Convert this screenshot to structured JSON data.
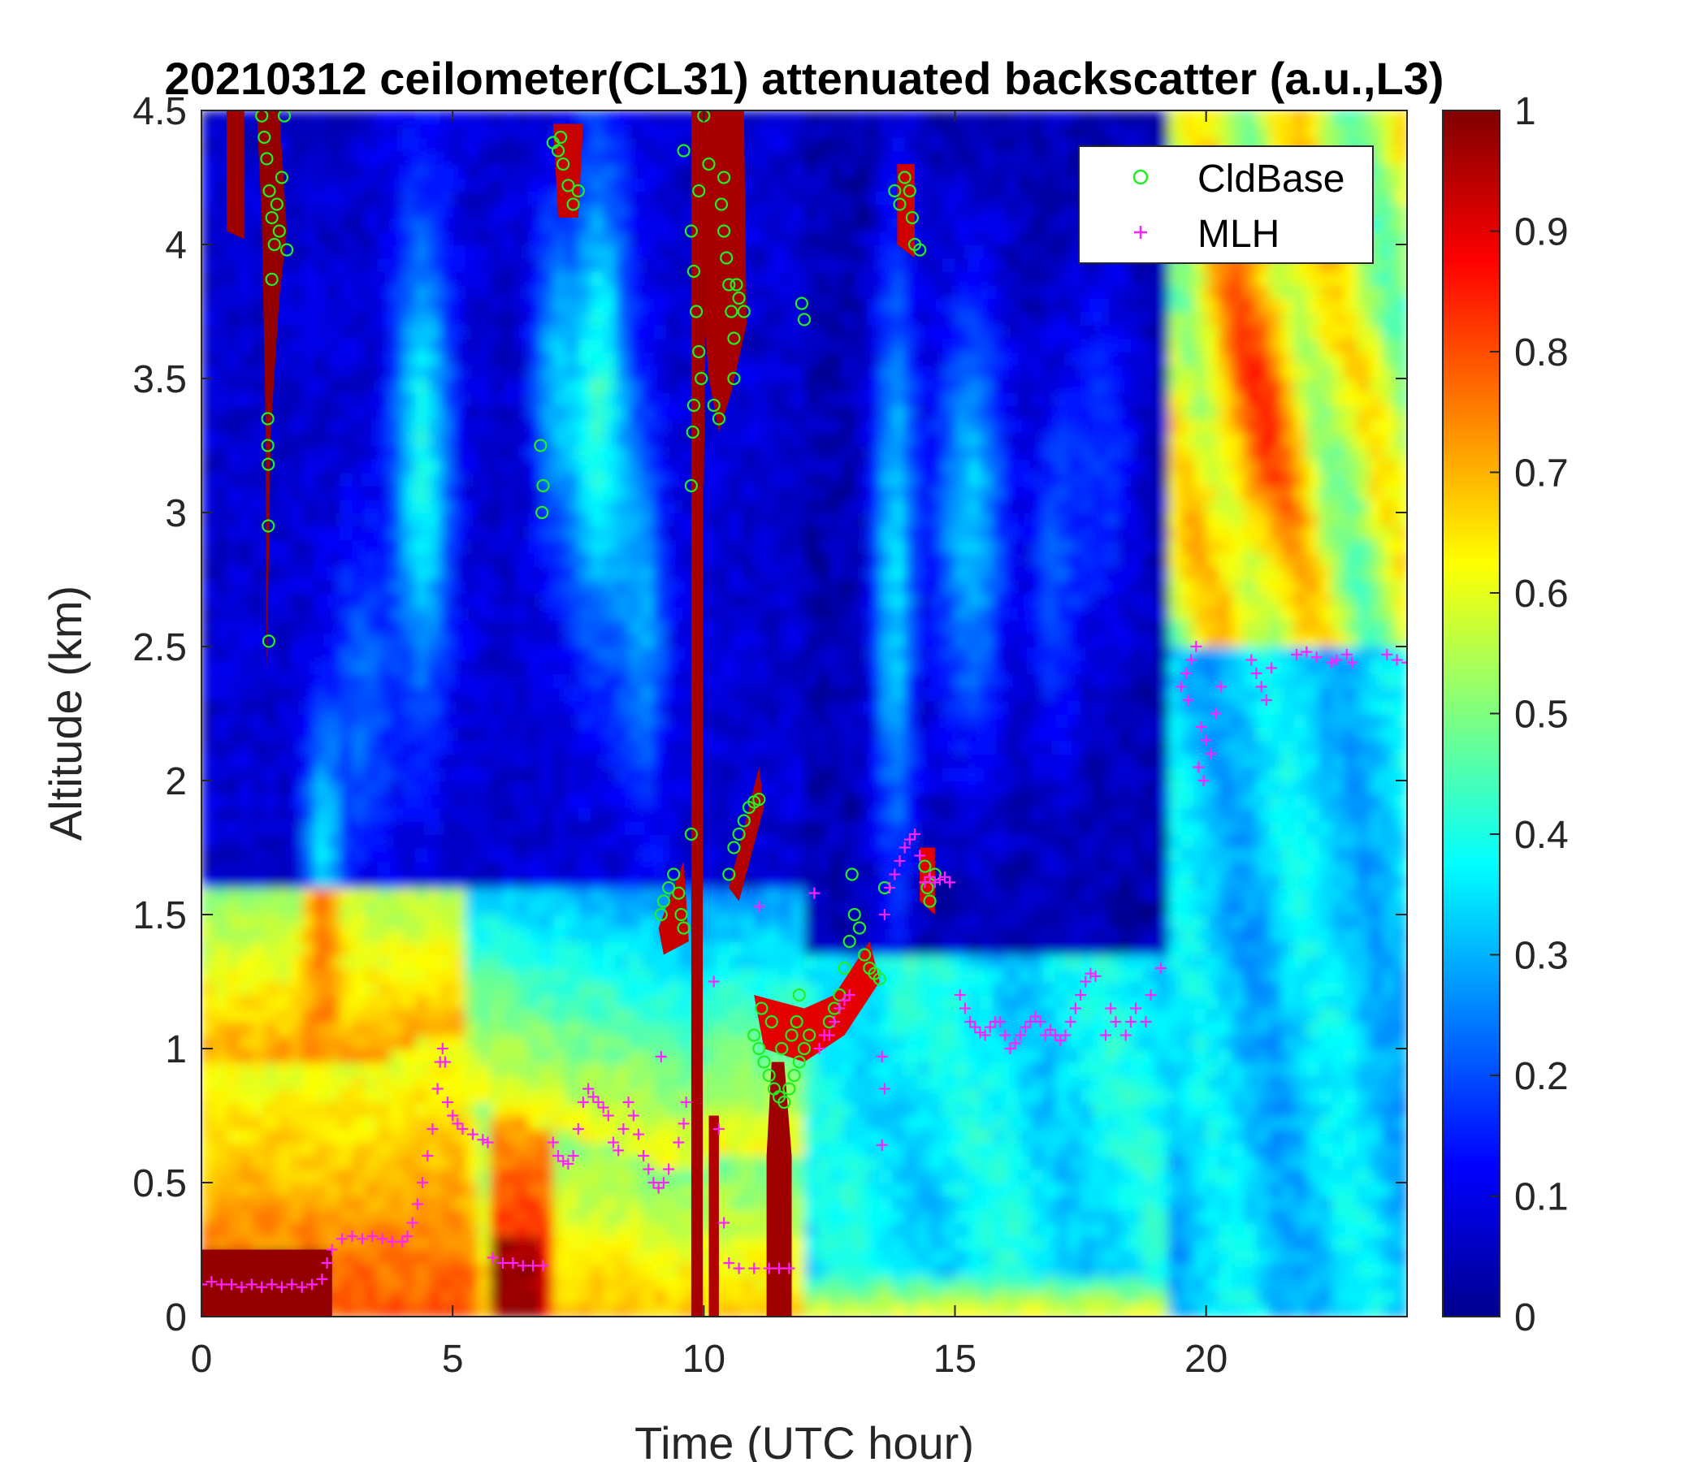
{
  "chart_data": {
    "type": "heatmap",
    "title": "20210312 ceilometer(CL31) attenuated backscatter (a.u.,L3)",
    "xlabel": "Time (UTC hour)",
    "ylabel": "Altitude (km)",
    "xlim": [
      0,
      24
    ],
    "ylim": [
      0,
      4.5
    ],
    "xticks": [
      "0",
      "5",
      "10",
      "15",
      "20"
    ],
    "yticks": [
      "0",
      "0.5",
      "1",
      "1.5",
      "2",
      "2.5",
      "3",
      "3.5",
      "4",
      "4.5"
    ],
    "colorbar": {
      "colormap": "jet",
      "range": [
        0,
        1
      ],
      "ticks": [
        "0",
        "0.1",
        "0.2",
        "0.3",
        "0.4",
        "0.5",
        "0.6",
        "0.7",
        "0.8",
        "0.9",
        "1"
      ]
    },
    "legend": {
      "placement": "top-right",
      "entries": [
        "CldBase",
        "MLH"
      ]
    },
    "series": [
      {
        "name": "CldBase",
        "marker": "circle",
        "color": "#22ee22",
        "points": [
          [
            1.2,
            4.48
          ],
          [
            1.25,
            4.4
          ],
          [
            1.3,
            4.32
          ],
          [
            1.35,
            4.2
          ],
          [
            1.4,
            4.1
          ],
          [
            1.45,
            4.0
          ],
          [
            1.5,
            4.15
          ],
          [
            1.55,
            4.05
          ],
          [
            1.6,
            4.25
          ],
          [
            1.65,
            4.48
          ],
          [
            1.7,
            3.98
          ],
          [
            1.4,
            3.87
          ],
          [
            1.32,
            3.35
          ],
          [
            1.32,
            3.25
          ],
          [
            1.33,
            3.18
          ],
          [
            1.33,
            2.95
          ],
          [
            1.34,
            2.52
          ],
          [
            7.0,
            4.38
          ],
          [
            7.1,
            4.35
          ],
          [
            7.2,
            4.3
          ],
          [
            7.3,
            4.22
          ],
          [
            7.4,
            4.15
          ],
          [
            7.5,
            4.2
          ],
          [
            7.15,
            4.4
          ],
          [
            6.75,
            3.25
          ],
          [
            6.8,
            3.1
          ],
          [
            6.78,
            3.0
          ],
          [
            9.6,
            4.35
          ],
          [
            9.75,
            4.05
          ],
          [
            9.8,
            3.9
          ],
          [
            9.85,
            3.75
          ],
          [
            9.9,
            3.6
          ],
          [
            9.95,
            3.5
          ],
          [
            9.8,
            3.4
          ],
          [
            9.78,
            3.3
          ],
          [
            9.75,
            3.1
          ],
          [
            9.9,
            4.2
          ],
          [
            10.0,
            4.48
          ],
          [
            10.1,
            4.3
          ],
          [
            10.2,
            3.4
          ],
          [
            10.3,
            3.35
          ],
          [
            10.35,
            4.15
          ],
          [
            10.4,
            4.05
          ],
          [
            10.45,
            3.95
          ],
          [
            10.5,
            3.85
          ],
          [
            10.55,
            3.75
          ],
          [
            10.6,
            3.65
          ],
          [
            10.65,
            3.85
          ],
          [
            10.7,
            3.8
          ],
          [
            10.8,
            3.75
          ],
          [
            10.6,
            3.5
          ],
          [
            10.4,
            4.25
          ],
          [
            9.15,
            1.5
          ],
          [
            9.2,
            1.55
          ],
          [
            9.3,
            1.6
          ],
          [
            9.4,
            1.65
          ],
          [
            9.5,
            1.58
          ],
          [
            9.55,
            1.5
          ],
          [
            9.6,
            1.45
          ],
          [
            9.75,
            1.8
          ],
          [
            10.5,
            1.65
          ],
          [
            10.6,
            1.75
          ],
          [
            10.7,
            1.8
          ],
          [
            10.8,
            1.85
          ],
          [
            10.9,
            1.9
          ],
          [
            11.0,
            1.92
          ],
          [
            11.1,
            1.93
          ],
          [
            11.0,
            1.05
          ],
          [
            11.1,
            1.0
          ],
          [
            11.2,
            0.95
          ],
          [
            11.3,
            0.9
          ],
          [
            11.4,
            0.85
          ],
          [
            11.5,
            0.82
          ],
          [
            11.6,
            0.8
          ],
          [
            11.7,
            0.85
          ],
          [
            11.8,
            0.9
          ],
          [
            11.9,
            0.95
          ],
          [
            12.0,
            1.0
          ],
          [
            12.1,
            1.05
          ],
          [
            11.15,
            1.15
          ],
          [
            11.35,
            1.1
          ],
          [
            11.55,
            1.0
          ],
          [
            11.75,
            1.05
          ],
          [
            11.9,
            1.2
          ],
          [
            11.85,
            1.1
          ],
          [
            12.5,
            1.1
          ],
          [
            12.6,
            1.15
          ],
          [
            12.7,
            1.2
          ],
          [
            12.8,
            1.3
          ],
          [
            12.9,
            1.4
          ],
          [
            13.0,
            1.5
          ],
          [
            13.1,
            1.45
          ],
          [
            13.2,
            1.35
          ],
          [
            13.3,
            1.3
          ],
          [
            13.4,
            1.28
          ],
          [
            13.5,
            1.26
          ],
          [
            12.95,
            1.65
          ],
          [
            13.6,
            1.6
          ],
          [
            11.95,
            3.78
          ],
          [
            12.0,
            3.72
          ],
          [
            13.8,
            4.2
          ],
          [
            13.9,
            4.15
          ],
          [
            14.0,
            4.25
          ],
          [
            14.1,
            4.2
          ],
          [
            14.15,
            4.1
          ],
          [
            14.2,
            4.0
          ],
          [
            14.3,
            3.98
          ],
          [
            14.4,
            1.68
          ],
          [
            14.45,
            1.6
          ],
          [
            14.5,
            1.55
          ],
          [
            14.6,
            1.65
          ]
        ]
      },
      {
        "name": "MLH",
        "marker": "plus",
        "color": "#ff22ff",
        "points": [
          [
            0.0,
            0.12
          ],
          [
            0.2,
            0.13
          ],
          [
            0.4,
            0.12
          ],
          [
            0.6,
            0.12
          ],
          [
            0.8,
            0.11
          ],
          [
            1.0,
            0.12
          ],
          [
            1.2,
            0.11
          ],
          [
            1.4,
            0.12
          ],
          [
            1.6,
            0.11
          ],
          [
            1.8,
            0.12
          ],
          [
            2.0,
            0.11
          ],
          [
            2.2,
            0.12
          ],
          [
            2.4,
            0.14
          ],
          [
            2.5,
            0.2
          ],
          [
            2.6,
            0.25
          ],
          [
            2.8,
            0.29
          ],
          [
            3.0,
            0.3
          ],
          [
            3.2,
            0.29
          ],
          [
            3.4,
            0.3
          ],
          [
            3.6,
            0.29
          ],
          [
            3.8,
            0.28
          ],
          [
            4.0,
            0.28
          ],
          [
            4.1,
            0.3
          ],
          [
            4.2,
            0.35
          ],
          [
            4.3,
            0.42
          ],
          [
            4.4,
            0.5
          ],
          [
            4.5,
            0.6
          ],
          [
            4.6,
            0.7
          ],
          [
            4.7,
            0.85
          ],
          [
            4.75,
            0.95
          ],
          [
            4.8,
            1.0
          ],
          [
            4.85,
            0.95
          ],
          [
            4.9,
            0.8
          ],
          [
            5.0,
            0.75
          ],
          [
            5.1,
            0.72
          ],
          [
            5.2,
            0.7
          ],
          [
            5.4,
            0.68
          ],
          [
            5.6,
            0.66
          ],
          [
            5.7,
            0.65
          ],
          [
            5.8,
            0.22
          ],
          [
            6.0,
            0.2
          ],
          [
            6.2,
            0.2
          ],
          [
            6.4,
            0.19
          ],
          [
            6.6,
            0.19
          ],
          [
            6.8,
            0.19
          ],
          [
            7.0,
            0.65
          ],
          [
            7.1,
            0.6
          ],
          [
            7.2,
            0.58
          ],
          [
            7.3,
            0.57
          ],
          [
            7.4,
            0.6
          ],
          [
            7.5,
            0.7
          ],
          [
            7.6,
            0.8
          ],
          [
            7.7,
            0.85
          ],
          [
            7.8,
            0.82
          ],
          [
            7.9,
            0.8
          ],
          [
            8.0,
            0.78
          ],
          [
            8.1,
            0.75
          ],
          [
            8.2,
            0.65
          ],
          [
            8.3,
            0.62
          ],
          [
            8.4,
            0.7
          ],
          [
            8.5,
            0.8
          ],
          [
            8.6,
            0.75
          ],
          [
            8.7,
            0.68
          ],
          [
            8.8,
            0.6
          ],
          [
            8.9,
            0.55
          ],
          [
            9.0,
            0.5
          ],
          [
            9.1,
            0.48
          ],
          [
            9.2,
            0.5
          ],
          [
            9.3,
            0.55
          ],
          [
            9.15,
            0.97
          ],
          [
            9.5,
            0.65
          ],
          [
            9.6,
            0.72
          ],
          [
            9.65,
            0.8
          ],
          [
            10.2,
            1.25
          ],
          [
            10.3,
            0.7
          ],
          [
            10.4,
            0.35
          ],
          [
            10.5,
            0.2
          ],
          [
            10.7,
            0.18
          ],
          [
            11.0,
            0.18
          ],
          [
            11.3,
            0.18
          ],
          [
            11.5,
            0.18
          ],
          [
            11.7,
            0.18
          ],
          [
            11.1,
            1.53
          ],
          [
            12.2,
            1.58
          ],
          [
            12.3,
            1.0
          ],
          [
            12.4,
            1.05
          ],
          [
            12.5,
            1.05
          ],
          [
            12.6,
            1.1
          ],
          [
            12.7,
            1.15
          ],
          [
            12.8,
            1.18
          ],
          [
            12.9,
            1.2
          ],
          [
            13.6,
            1.5
          ],
          [
            13.7,
            1.6
          ],
          [
            13.8,
            1.65
          ],
          [
            13.9,
            1.7
          ],
          [
            14.0,
            1.75
          ],
          [
            14.1,
            1.78
          ],
          [
            14.2,
            1.8
          ],
          [
            14.3,
            1.72
          ],
          [
            14.4,
            1.62
          ],
          [
            14.5,
            1.64
          ],
          [
            14.6,
            1.62
          ],
          [
            14.7,
            1.63
          ],
          [
            14.8,
            1.64
          ],
          [
            14.9,
            1.62
          ],
          [
            13.55,
            0.97
          ],
          [
            13.6,
            0.85
          ],
          [
            13.55,
            0.64
          ],
          [
            15.1,
            1.2
          ],
          [
            15.2,
            1.15
          ],
          [
            15.3,
            1.1
          ],
          [
            15.4,
            1.08
          ],
          [
            15.5,
            1.06
          ],
          [
            15.6,
            1.05
          ],
          [
            15.7,
            1.08
          ],
          [
            15.8,
            1.1
          ],
          [
            15.9,
            1.1
          ],
          [
            16.0,
            1.05
          ],
          [
            16.1,
            1.0
          ],
          [
            16.2,
            1.02
          ],
          [
            16.3,
            1.05
          ],
          [
            16.4,
            1.08
          ],
          [
            16.5,
            1.1
          ],
          [
            16.6,
            1.12
          ],
          [
            16.7,
            1.1
          ],
          [
            16.8,
            1.05
          ],
          [
            16.9,
            1.07
          ],
          [
            17.0,
            1.05
          ],
          [
            17.1,
            1.03
          ],
          [
            17.2,
            1.05
          ],
          [
            17.3,
            1.1
          ],
          [
            17.4,
            1.15
          ],
          [
            17.5,
            1.2
          ],
          [
            17.6,
            1.25
          ],
          [
            17.7,
            1.28
          ],
          [
            17.8,
            1.27
          ],
          [
            18.0,
            1.05
          ],
          [
            18.1,
            1.15
          ],
          [
            18.2,
            1.1
          ],
          [
            18.4,
            1.05
          ],
          [
            18.5,
            1.1
          ],
          [
            18.6,
            1.15
          ],
          [
            18.8,
            1.1
          ],
          [
            18.9,
            1.2
          ],
          [
            19.1,
            1.3
          ],
          [
            19.5,
            2.35
          ],
          [
            19.6,
            2.4
          ],
          [
            19.7,
            2.45
          ],
          [
            19.8,
            2.5
          ],
          [
            19.65,
            2.3
          ],
          [
            19.9,
            2.2
          ],
          [
            20.0,
            2.15
          ],
          [
            19.85,
            2.05
          ],
          [
            19.95,
            2.0
          ],
          [
            20.1,
            2.1
          ],
          [
            20.2,
            2.25
          ],
          [
            20.3,
            2.35
          ],
          [
            20.9,
            2.45
          ],
          [
            21.0,
            2.4
          ],
          [
            21.1,
            2.35
          ],
          [
            21.2,
            2.3
          ],
          [
            21.3,
            2.42
          ],
          [
            21.8,
            2.47
          ],
          [
            22.0,
            2.48
          ],
          [
            22.2,
            2.46
          ],
          [
            22.5,
            2.44
          ],
          [
            22.6,
            2.45
          ],
          [
            22.8,
            2.47
          ],
          [
            22.9,
            2.44
          ],
          [
            23.6,
            2.47
          ],
          [
            23.8,
            2.45
          ],
          [
            24.0,
            2.44
          ]
        ]
      }
    ]
  }
}
